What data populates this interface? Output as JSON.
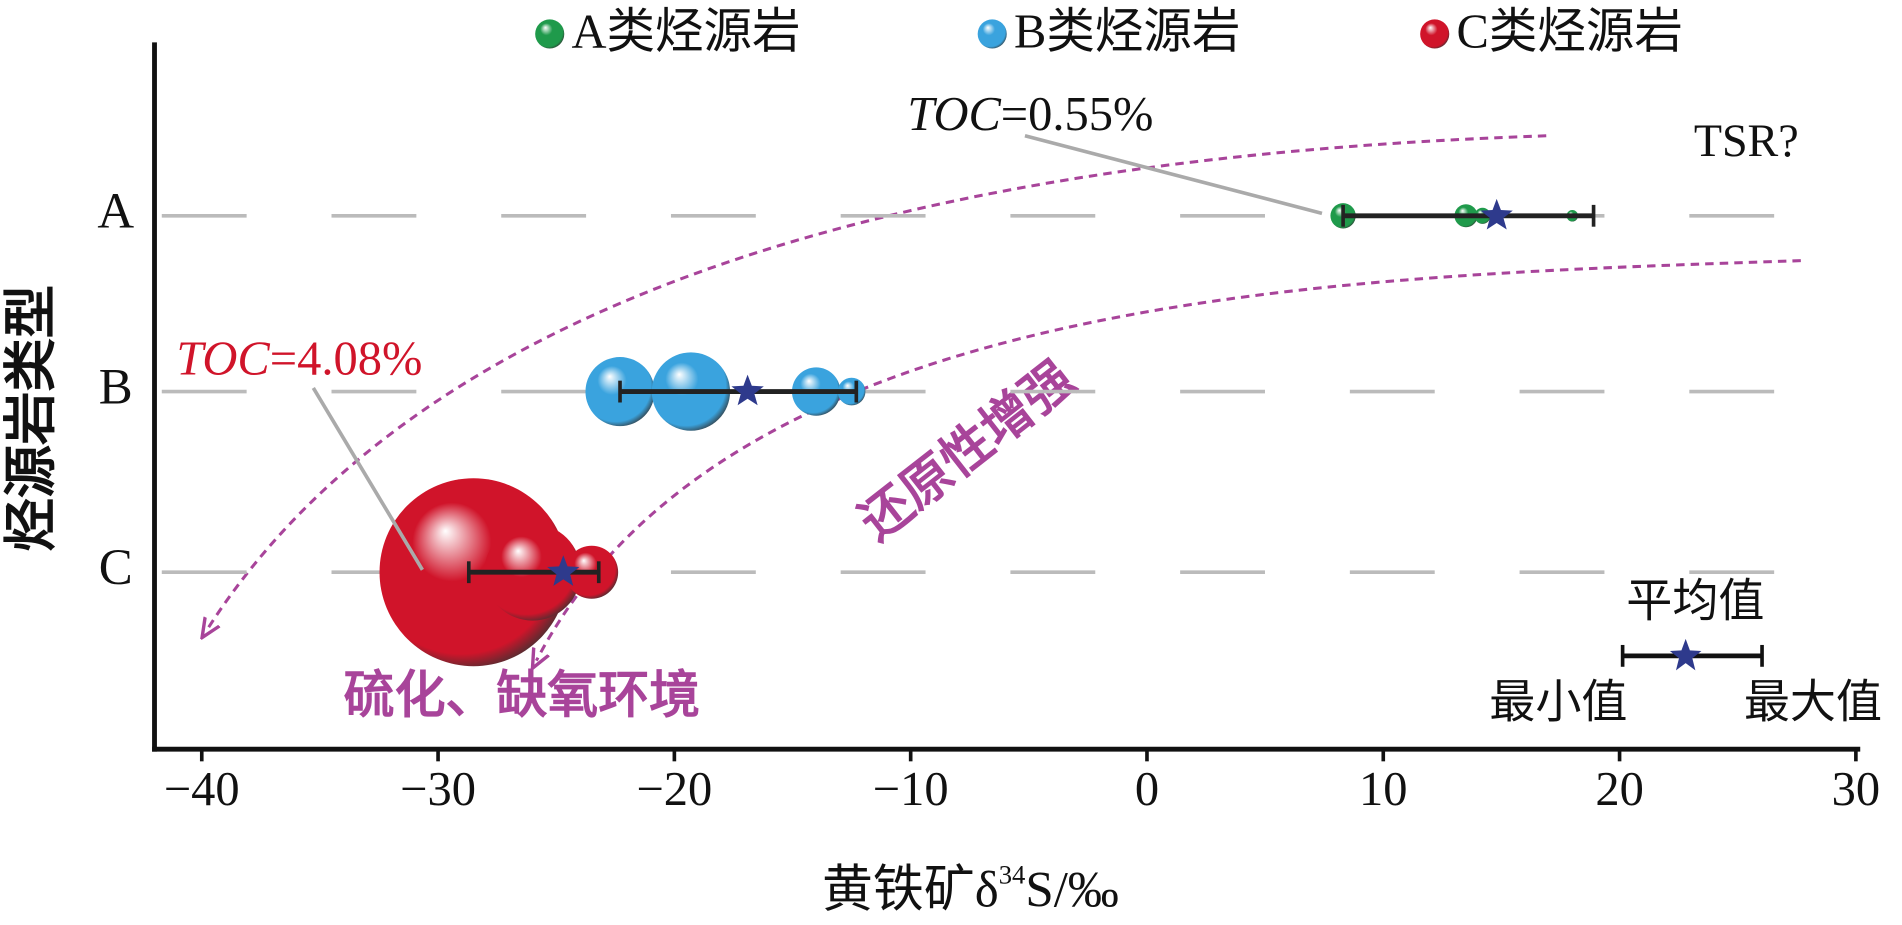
{
  "chart_data": {
    "type": "bubble",
    "y_label": "烃源岩类型",
    "x_label": [
      "黄铁矿δ",
      "34",
      "S/‰"
    ],
    "categories": [
      "A",
      "B",
      "C"
    ],
    "xlim": [
      -42,
      30
    ],
    "xticks": [
      {
        "value": -40,
        "label": "−40"
      },
      {
        "value": -30,
        "label": "−30"
      },
      {
        "value": -20,
        "label": "−20"
      },
      {
        "value": -10,
        "label": "−10"
      },
      0,
      10,
      20,
      30
    ],
    "grid": true,
    "legend": "top",
    "series": [
      {
        "name": "A类烃源岩",
        "color": "#1f9a4b",
        "x": [
          8.3,
          13.5,
          14.2,
          18.0
        ],
        "sizes": [
          0.55,
          0.5,
          0.35,
          0.25
        ],
        "mean": 14.8,
        "min": 8.3,
        "max": 18.9
      },
      {
        "name": "B类烃源岩",
        "color": "#3aa3de",
        "x": [
          -22.3,
          -19.3,
          -14.0,
          -12.5
        ],
        "sizes": [
          1.5,
          1.7,
          1.05,
          0.6
        ],
        "mean": -16.9,
        "min": -22.3,
        "max": -12.3
      },
      {
        "name": "C类烃源岩",
        "color": "#d0142a",
        "x": [
          -28.5,
          -26.0,
          -23.5
        ],
        "sizes": [
          4.08,
          2.1,
          1.15
        ],
        "mean": -24.7,
        "min": -28.7,
        "max": -23.2
      }
    ],
    "annotations": [
      {
        "text": [
          "TOC",
          "=0.55%"
        ]
      },
      {
        "text": [
          "TOC",
          "=4.08%"
        ],
        "color": "#d0142a"
      },
      {
        "text": "TSR?"
      },
      {
        "text": "还原性增强",
        "color": "#a8449a"
      },
      {
        "text": "硫化、缺氧环境",
        "color": "#a8449a"
      }
    ],
    "key": {
      "mean": "平均值",
      "min": "最小值",
      "max": "最大值"
    }
  }
}
